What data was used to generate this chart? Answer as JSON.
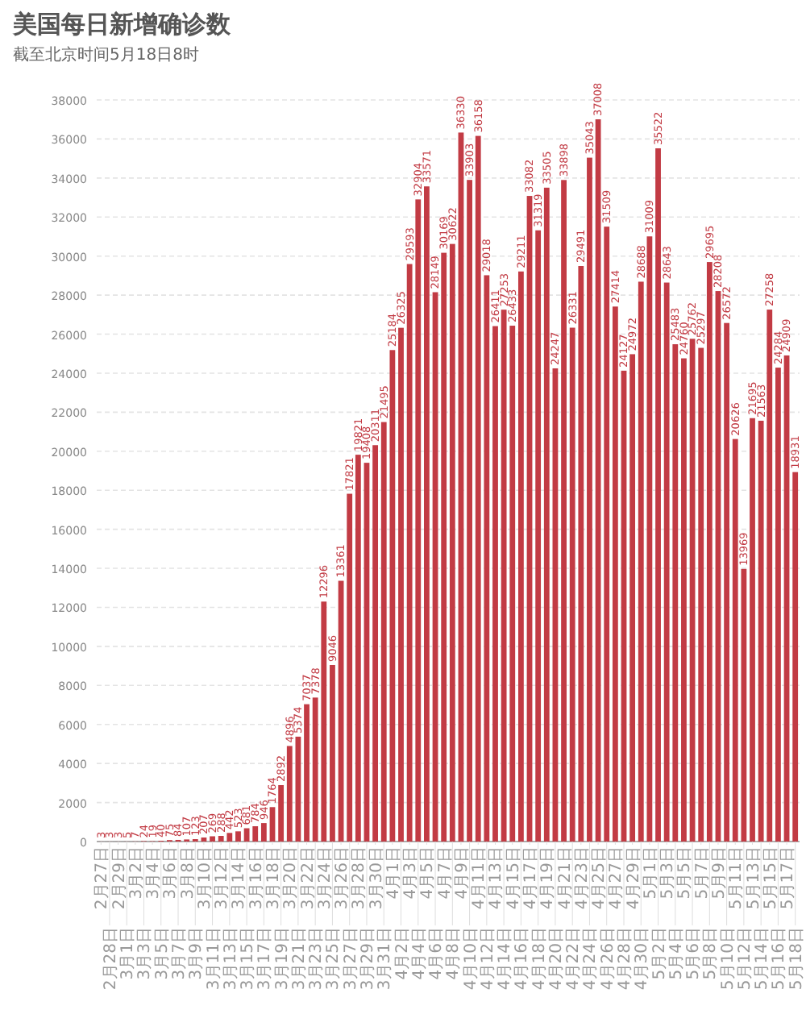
{
  "chart_data": {
    "type": "bar",
    "title": "美国每日新增确诊数",
    "subtitle": "截至北京时间5月18日8时",
    "categories": [
      "2月27日",
      "2月28日",
      "2月29日",
      "3月1日",
      "3月2日",
      "3月3日",
      "3月4日",
      "3月5日",
      "3月6日",
      "3月7日",
      "3月8日",
      "3月9日",
      "3月10日",
      "3月11日",
      "3月12日",
      "3月13日",
      "3月14日",
      "3月15日",
      "3月16日",
      "3月17日",
      "3月18日",
      "3月19日",
      "3月20日",
      "3月21日",
      "3月22日",
      "3月23日",
      "3月24日",
      "3月25日",
      "3月26日",
      "3月27日",
      "3月28日",
      "3月29日",
      "3月30日",
      "3月31日",
      "4月1日",
      "4月2日",
      "4月3日",
      "4月4日",
      "4月5日",
      "4月6日",
      "4月7日",
      "4月8日",
      "4月9日",
      "4月10日",
      "4月11日",
      "4月12日",
      "4月13日",
      "4月14日",
      "4月15日",
      "4月16日",
      "4月17日",
      "4月18日",
      "4月19日",
      "4月20日",
      "4月21日",
      "4月22日",
      "4月23日",
      "4月24日",
      "4月25日",
      "4月26日",
      "4月27日",
      "4月28日",
      "4月29日",
      "4月30日",
      "5月1日",
      "5月2日",
      "5月3日",
      "5月4日",
      "5月5日",
      "5月6日",
      "5月7日",
      "5月8日",
      "5月9日",
      "5月10日",
      "5月11日",
      "5月12日",
      "5月13日",
      "5月14日",
      "5月15日",
      "5月16日",
      "5月17日",
      "5月18日"
    ],
    "values": [
      3,
      3,
      3,
      5,
      7,
      24,
      19,
      40,
      75,
      84,
      107,
      123,
      207,
      269,
      288,
      442,
      523,
      681,
      784,
      946,
      1764,
      2892,
      4896,
      5374,
      7037,
      7378,
      12296,
      9046,
      13361,
      17821,
      19821,
      19408,
      20311,
      21495,
      25184,
      26325,
      29593,
      32904,
      33571,
      28149,
      30169,
      30622,
      36330,
      33903,
      36158,
      29018,
      26411,
      27253,
      26433,
      29211,
      33082,
      31319,
      33505,
      24247,
      33898,
      26331,
      29491,
      35043,
      37008,
      31509,
      27414,
      24127,
      24972,
      28688,
      31009,
      35522,
      28643,
      25483,
      24760,
      25762,
      25297,
      29695,
      28208,
      26572,
      20626,
      13969,
      21695,
      21563,
      27258,
      24284,
      24909,
      18931
    ],
    "color": "#c23b44",
    "ylim": [
      0,
      38000
    ],
    "yticks": [
      0,
      2000,
      4000,
      6000,
      8000,
      10000,
      12000,
      14000,
      16000,
      18000,
      20000,
      22000,
      24000,
      26000,
      28000,
      30000,
      32000,
      34000,
      36000,
      38000
    ],
    "grid": "y",
    "data_labels": true
  }
}
